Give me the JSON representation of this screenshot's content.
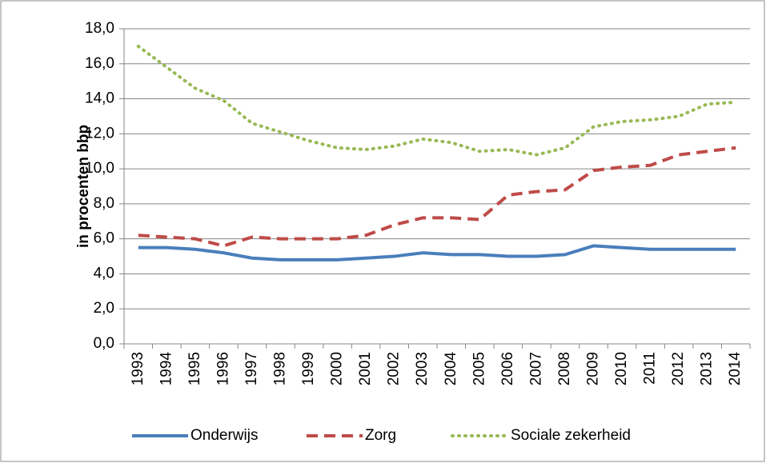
{
  "chart_data": {
    "type": "line",
    "y_label": "in procenten bbp",
    "categories": [
      "1993",
      "1994",
      "1995",
      "1996",
      "1997",
      "1998",
      "1999",
      "2000",
      "2001",
      "2002",
      "2003",
      "2004",
      "2005",
      "2006",
      "2007",
      "2008",
      "2009",
      "2010",
      "2011",
      "2012",
      "2013",
      "2014"
    ],
    "series": [
      {
        "name": "Onderwijs",
        "color": "#4a7ebb",
        "dash": "solid",
        "values": [
          5.5,
          5.5,
          5.4,
          5.2,
          4.9,
          4.8,
          4.8,
          4.8,
          4.9,
          5.0,
          5.2,
          5.1,
          5.1,
          5.0,
          5.0,
          5.1,
          5.6,
          5.5,
          5.4,
          5.4,
          5.4,
          5.4
        ]
      },
      {
        "name": "Zorg",
        "color": "#be4b48",
        "dash": "dashed",
        "values": [
          6.2,
          6.1,
          6.0,
          5.6,
          6.1,
          6.0,
          6.0,
          6.0,
          6.2,
          6.8,
          7.2,
          7.2,
          7.1,
          8.5,
          8.7,
          8.8,
          9.9,
          10.1,
          10.2,
          10.8,
          11.0,
          11.2
        ]
      },
      {
        "name": "Sociale zekerheid",
        "color": "#98b954",
        "dash": "dotted",
        "values": [
          17.0,
          15.8,
          14.6,
          13.9,
          12.6,
          12.1,
          11.6,
          11.2,
          11.1,
          11.3,
          11.7,
          11.5,
          11.0,
          11.1,
          10.8,
          11.2,
          12.4,
          12.7,
          12.8,
          13.0,
          13.7,
          13.8
        ]
      }
    ],
    "ylim": [
      0,
      18
    ],
    "yticks": [
      {
        "value": 0,
        "label": "0,0"
      },
      {
        "value": 2,
        "label": "2,0"
      },
      {
        "value": 4,
        "label": "4,0"
      },
      {
        "value": 6,
        "label": "6,0"
      },
      {
        "value": 8,
        "label": "8,0"
      },
      {
        "value": 10,
        "label": "10,0"
      },
      {
        "value": 12,
        "label": "12,0"
      },
      {
        "value": 14,
        "label": "14,0"
      },
      {
        "value": 16,
        "label": "16,0"
      },
      {
        "value": 18,
        "label": "18,0"
      }
    ],
    "grid": true,
    "legend": "bottom"
  }
}
